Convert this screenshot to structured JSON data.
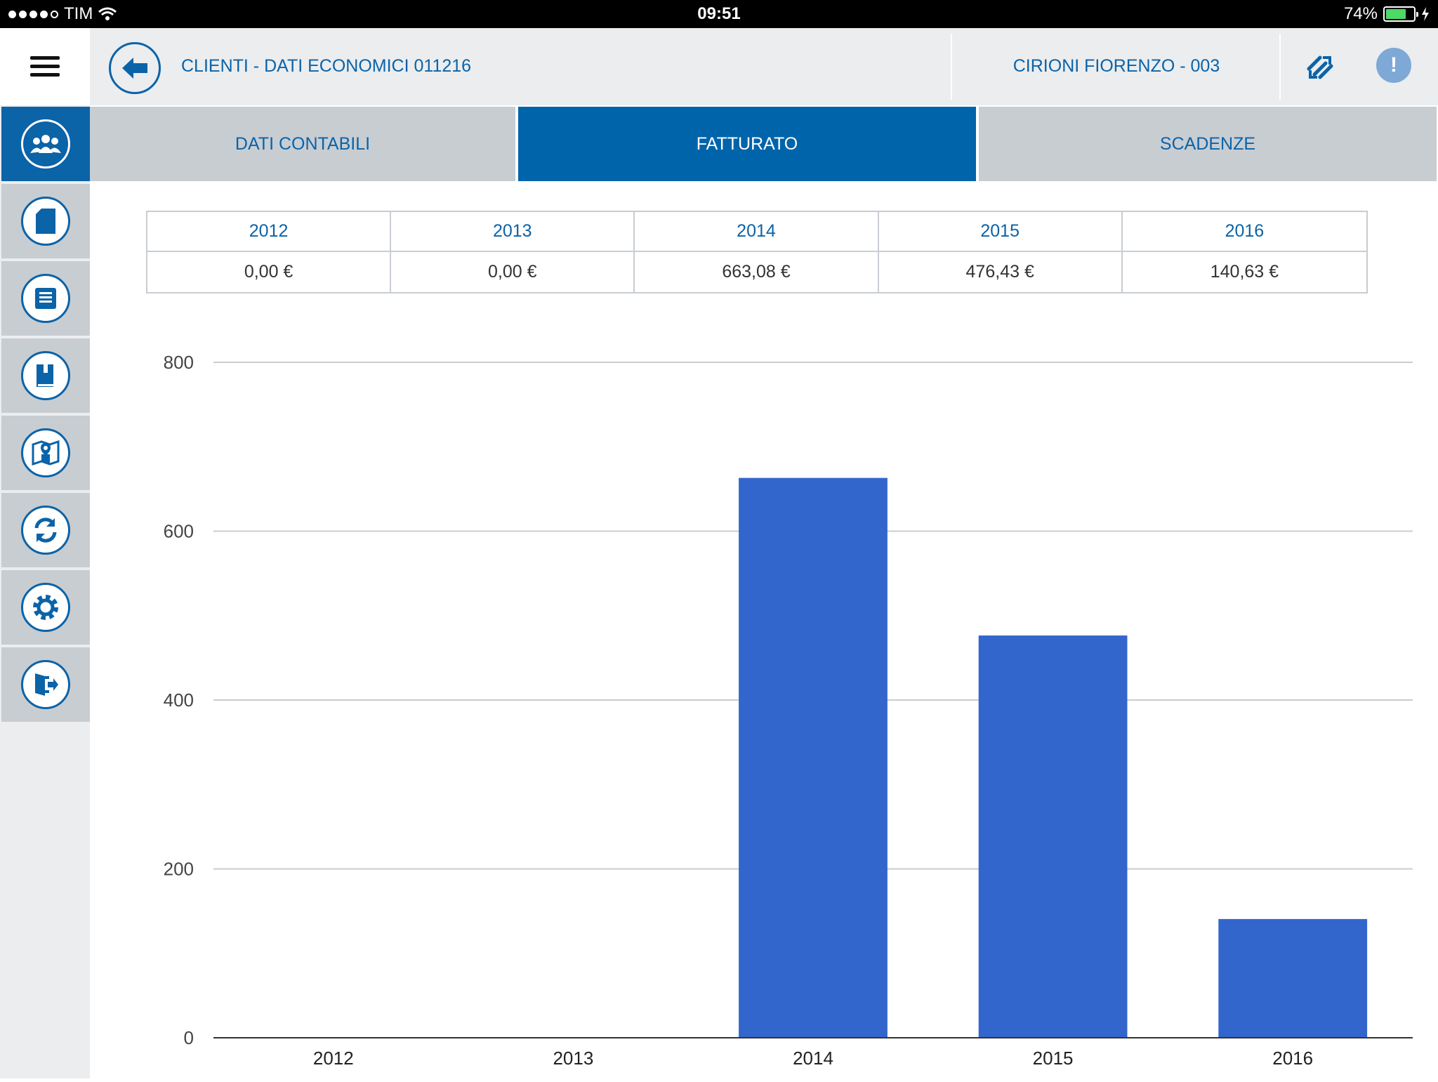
{
  "status_bar": {
    "carrier": "TIM",
    "time": "09:51",
    "battery": "74%"
  },
  "header": {
    "title": "CLIENTI  - DATI ECONOMICI 011216",
    "customer": "CIRIONI FIORENZO - 003",
    "alert_symbol": "!"
  },
  "sidebar": {
    "items": [
      {
        "icon": "clients-icon",
        "active": true
      },
      {
        "icon": "document-icon",
        "active": false
      },
      {
        "icon": "inbox-icon",
        "active": false
      },
      {
        "icon": "catalog-icon",
        "active": false
      },
      {
        "icon": "map-icon",
        "active": false
      },
      {
        "icon": "sync-icon",
        "active": false
      },
      {
        "icon": "settings-icon",
        "active": false
      },
      {
        "icon": "logout-icon",
        "active": false
      }
    ]
  },
  "tabs": [
    {
      "label": "DATI CONTABILI",
      "active": false
    },
    {
      "label": "FATTURATO",
      "active": true
    },
    {
      "label": "SCADENZE",
      "active": false
    }
  ],
  "summary": {
    "years": [
      "2012",
      "2013",
      "2014",
      "2015",
      "2016"
    ],
    "amounts": [
      "0,00 €",
      "0,00 €",
      "663,08 €",
      "476,43 €",
      "140,63 €"
    ]
  },
  "colors": {
    "brand": "#0b63a8",
    "bar": "#3366cc",
    "grid": "#cccccc"
  },
  "chart_data": {
    "type": "bar",
    "categories": [
      "2012",
      "2013",
      "2014",
      "2015",
      "2016"
    ],
    "values": [
      0,
      0,
      663.08,
      476.43,
      140.63
    ],
    "title": "",
    "xlabel": "",
    "ylabel": "",
    "ylim": [
      0,
      800
    ],
    "yticks": [
      0,
      200,
      400,
      600,
      800
    ],
    "grid": true,
    "legend": "none"
  }
}
